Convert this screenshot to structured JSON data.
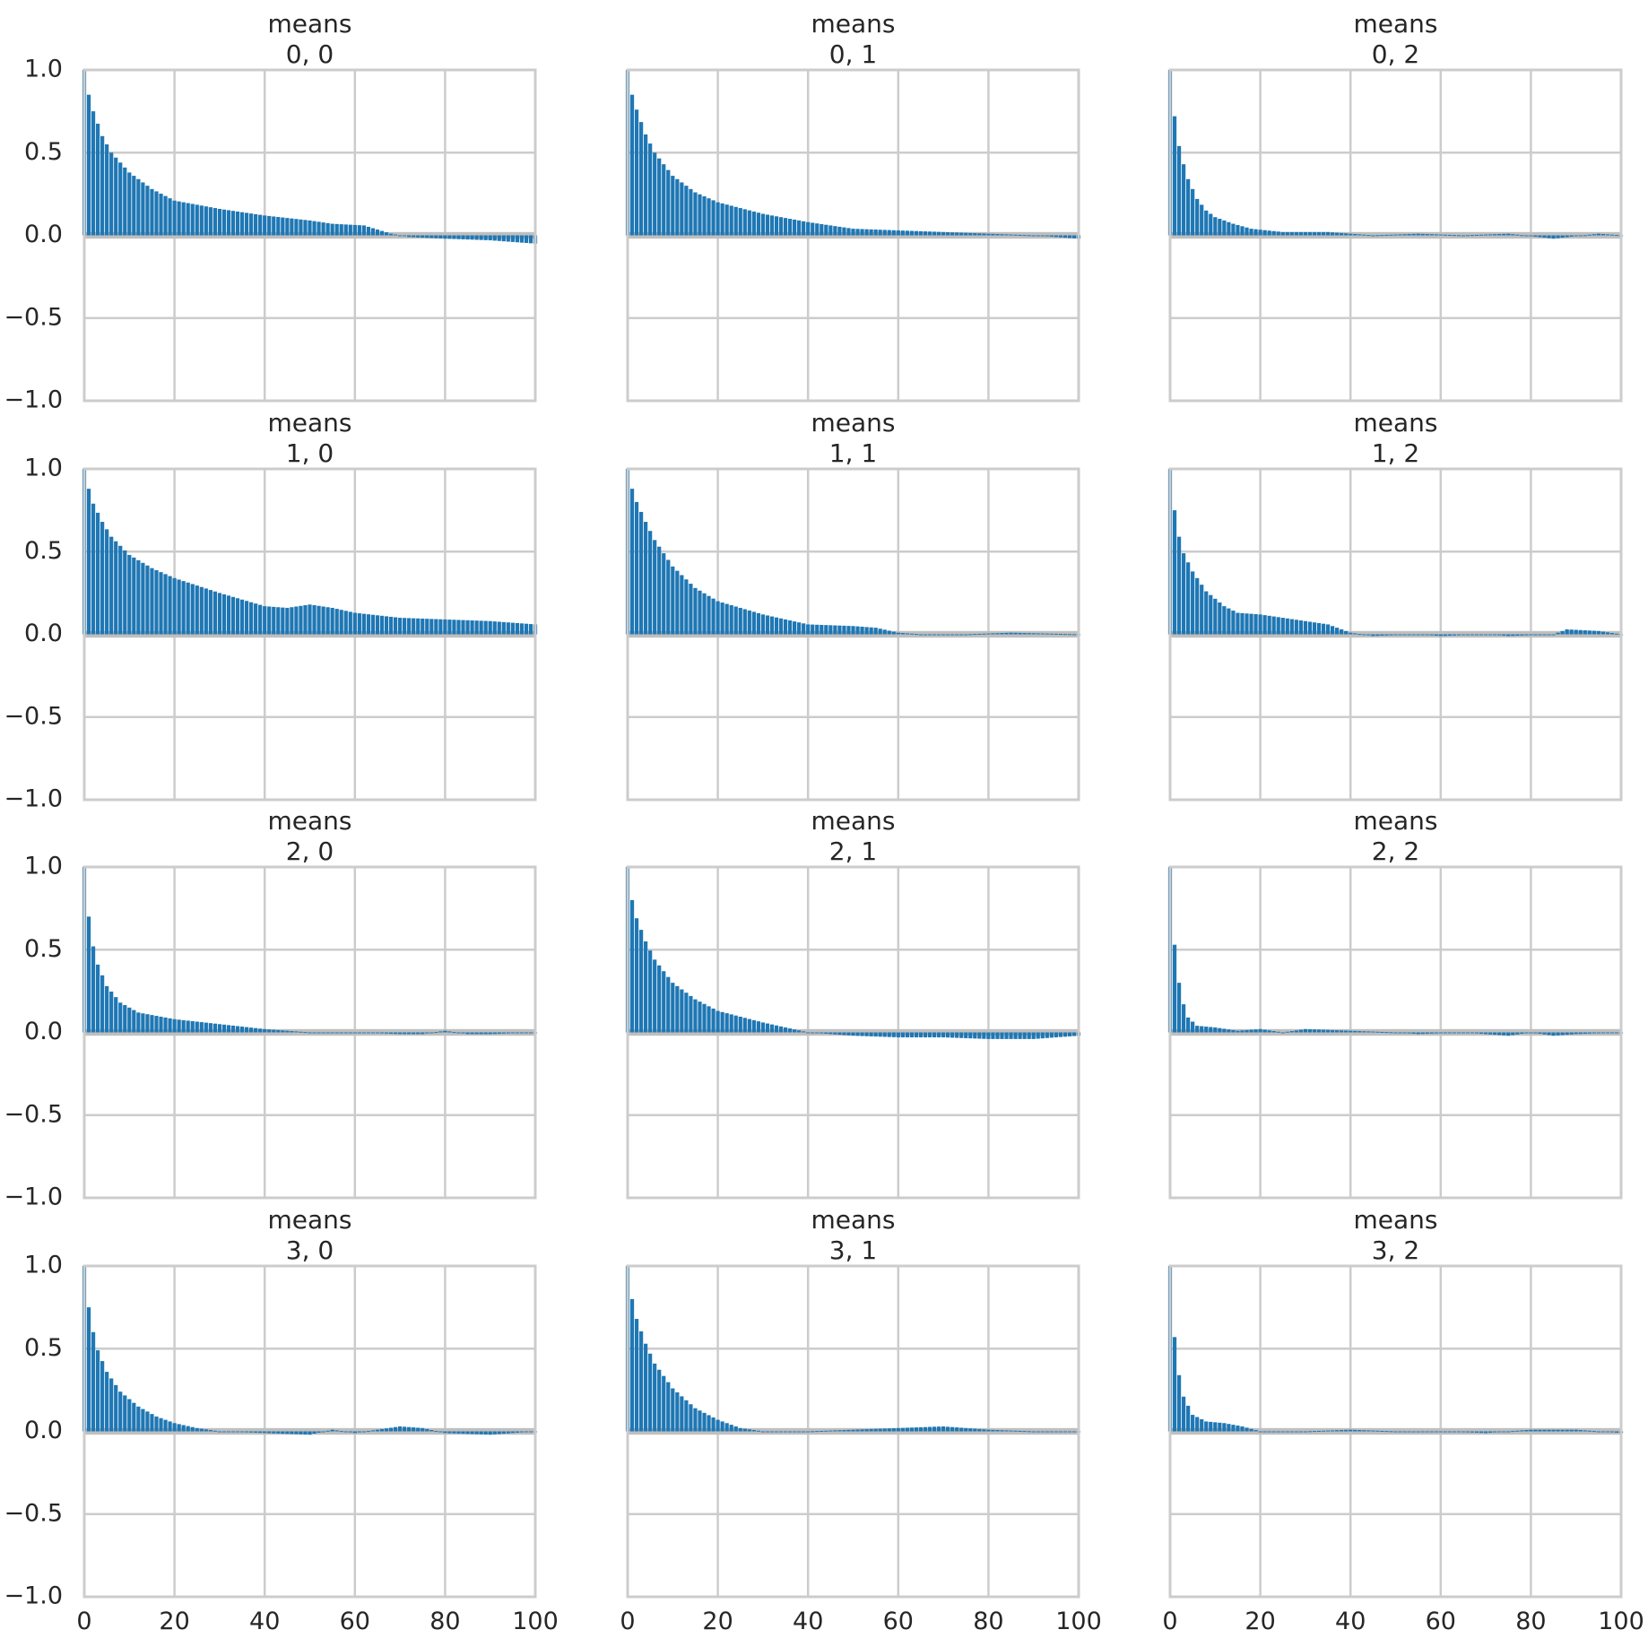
{
  "figure": {
    "bar_color": "#1f77b4",
    "band_color": "#bfbfbf",
    "grid_color": "#cccccc",
    "spine_color": "#cccccc",
    "text_color": "#262626"
  },
  "chart_data": [
    {
      "type": "bar",
      "title": "means",
      "subtitle": "0, 0",
      "xlim": [
        0,
        100
      ],
      "ylim": [
        -1,
        1
      ],
      "xticks": [
        "0",
        "20",
        "40",
        "60",
        "80",
        "100"
      ],
      "yticks": [
        "1.0",
        "0.5",
        "0.0",
        "−0.5",
        "−1.0"
      ],
      "anchors": [
        [
          0,
          1.0
        ],
        [
          1,
          0.85
        ],
        [
          2,
          0.75
        ],
        [
          4,
          0.6
        ],
        [
          6,
          0.5
        ],
        [
          10,
          0.38
        ],
        [
          15,
          0.28
        ],
        [
          20,
          0.21
        ],
        [
          30,
          0.16
        ],
        [
          40,
          0.12
        ],
        [
          50,
          0.09
        ],
        [
          55,
          0.07
        ],
        [
          62,
          0.06
        ],
        [
          68,
          0.01
        ],
        [
          72,
          -0.01
        ],
        [
          80,
          -0.02
        ],
        [
          90,
          -0.03
        ],
        [
          100,
          -0.05
        ]
      ]
    },
    {
      "type": "bar",
      "title": "means",
      "subtitle": "0, 1",
      "xlim": [
        0,
        100
      ],
      "ylim": [
        -1,
        1
      ],
      "xticks": [
        "0",
        "20",
        "40",
        "60",
        "80",
        "100"
      ],
      "yticks": [
        "1.0",
        "0.5",
        "0.0",
        "−0.5",
        "−1.0"
      ],
      "anchors": [
        [
          0,
          1.0
        ],
        [
          1,
          0.85
        ],
        [
          2,
          0.76
        ],
        [
          4,
          0.61
        ],
        [
          6,
          0.5
        ],
        [
          10,
          0.36
        ],
        [
          15,
          0.26
        ],
        [
          20,
          0.2
        ],
        [
          30,
          0.13
        ],
        [
          40,
          0.08
        ],
        [
          50,
          0.04
        ],
        [
          60,
          0.03
        ],
        [
          70,
          0.02
        ],
        [
          80,
          0.01
        ],
        [
          90,
          0.0
        ],
        [
          95,
          -0.01
        ],
        [
          100,
          -0.02
        ]
      ]
    },
    {
      "type": "bar",
      "title": "means",
      "subtitle": "0, 2",
      "xlim": [
        0,
        100
      ],
      "ylim": [
        -1,
        1
      ],
      "xticks": [
        "0",
        "20",
        "40",
        "60",
        "80",
        "100"
      ],
      "yticks": [
        "1.0",
        "0.5",
        "0.0",
        "−0.5",
        "−1.0"
      ],
      "anchors": [
        [
          0,
          1.0
        ],
        [
          1,
          0.72
        ],
        [
          2,
          0.54
        ],
        [
          3,
          0.43
        ],
        [
          4,
          0.34
        ],
        [
          6,
          0.22
        ],
        [
          8,
          0.15
        ],
        [
          10,
          0.11
        ],
        [
          14,
          0.07
        ],
        [
          18,
          0.04
        ],
        [
          25,
          0.02
        ],
        [
          35,
          0.02
        ],
        [
          45,
          0.0
        ],
        [
          55,
          0.01
        ],
        [
          65,
          0.0
        ],
        [
          75,
          0.01
        ],
        [
          85,
          -0.02
        ],
        [
          95,
          0.01
        ],
        [
          100,
          0.0
        ]
      ]
    },
    {
      "type": "bar",
      "title": "means",
      "subtitle": "1, 0",
      "xlim": [
        0,
        100
      ],
      "ylim": [
        -1,
        1
      ],
      "xticks": [
        "0",
        "20",
        "40",
        "60",
        "80",
        "100"
      ],
      "yticks": [
        "1.0",
        "0.5",
        "0.0",
        "−0.5",
        "−1.0"
      ],
      "anchors": [
        [
          0,
          1.0
        ],
        [
          1,
          0.88
        ],
        [
          2,
          0.79
        ],
        [
          4,
          0.68
        ],
        [
          6,
          0.59
        ],
        [
          10,
          0.48
        ],
        [
          15,
          0.4
        ],
        [
          20,
          0.34
        ],
        [
          30,
          0.25
        ],
        [
          40,
          0.17
        ],
        [
          45,
          0.16
        ],
        [
          50,
          0.18
        ],
        [
          55,
          0.16
        ],
        [
          60,
          0.13
        ],
        [
          70,
          0.1
        ],
        [
          80,
          0.09
        ],
        [
          90,
          0.08
        ],
        [
          100,
          0.06
        ]
      ]
    },
    {
      "type": "bar",
      "title": "means",
      "subtitle": "1, 1",
      "xlim": [
        0,
        100
      ],
      "ylim": [
        -1,
        1
      ],
      "xticks": [
        "0",
        "20",
        "40",
        "60",
        "80",
        "100"
      ],
      "yticks": [
        "1.0",
        "0.5",
        "0.0",
        "−0.5",
        "−1.0"
      ],
      "anchors": [
        [
          0,
          1.0
        ],
        [
          1,
          0.88
        ],
        [
          2,
          0.8
        ],
        [
          4,
          0.68
        ],
        [
          6,
          0.57
        ],
        [
          10,
          0.41
        ],
        [
          15,
          0.28
        ],
        [
          20,
          0.2
        ],
        [
          30,
          0.12
        ],
        [
          40,
          0.06
        ],
        [
          50,
          0.05
        ],
        [
          55,
          0.04
        ],
        [
          60,
          0.01
        ],
        [
          65,
          0.0
        ],
        [
          75,
          0.0
        ],
        [
          85,
          0.01
        ],
        [
          100,
          0.0
        ]
      ]
    },
    {
      "type": "bar",
      "title": "means",
      "subtitle": "1, 2",
      "xlim": [
        0,
        100
      ],
      "ylim": [
        -1,
        1
      ],
      "xticks": [
        "0",
        "20",
        "40",
        "60",
        "80",
        "100"
      ],
      "yticks": [
        "1.0",
        "0.5",
        "0.0",
        "−0.5",
        "−1.0"
      ],
      "anchors": [
        [
          0,
          1.0
        ],
        [
          1,
          0.75
        ],
        [
          2,
          0.59
        ],
        [
          3,
          0.49
        ],
        [
          5,
          0.38
        ],
        [
          8,
          0.26
        ],
        [
          12,
          0.17
        ],
        [
          15,
          0.13
        ],
        [
          20,
          0.12
        ],
        [
          25,
          0.1
        ],
        [
          30,
          0.08
        ],
        [
          35,
          0.06
        ],
        [
          40,
          0.01
        ],
        [
          45,
          -0.01
        ],
        [
          55,
          0.0
        ],
        [
          60,
          -0.01
        ],
        [
          70,
          0.0
        ],
        [
          75,
          -0.01
        ],
        [
          85,
          0.0
        ],
        [
          88,
          0.03
        ],
        [
          95,
          0.02
        ],
        [
          100,
          0.0
        ]
      ]
    },
    {
      "type": "bar",
      "title": "means",
      "subtitle": "2, 0",
      "xlim": [
        0,
        100
      ],
      "ylim": [
        -1,
        1
      ],
      "xticks": [
        "0",
        "20",
        "40",
        "60",
        "80",
        "100"
      ],
      "yticks": [
        "1.0",
        "0.5",
        "0.0",
        "−0.5",
        "−1.0"
      ],
      "anchors": [
        [
          0,
          1.0
        ],
        [
          1,
          0.7
        ],
        [
          2,
          0.52
        ],
        [
          3,
          0.41
        ],
        [
          5,
          0.28
        ],
        [
          8,
          0.18
        ],
        [
          12,
          0.12
        ],
        [
          20,
          0.08
        ],
        [
          30,
          0.05
        ],
        [
          40,
          0.02
        ],
        [
          50,
          0.0
        ],
        [
          60,
          0.0
        ],
        [
          70,
          -0.01
        ],
        [
          75,
          -0.01
        ],
        [
          80,
          0.01
        ],
        [
          85,
          -0.01
        ],
        [
          90,
          -0.01
        ],
        [
          100,
          0.0
        ]
      ]
    },
    {
      "type": "bar",
      "title": "means",
      "subtitle": "2, 1",
      "xlim": [
        0,
        100
      ],
      "ylim": [
        -1,
        1
      ],
      "xticks": [
        "0",
        "20",
        "40",
        "60",
        "80",
        "100"
      ],
      "yticks": [
        "1.0",
        "0.5",
        "0.0",
        "−0.5",
        "−1.0"
      ],
      "anchors": [
        [
          0,
          1.0
        ],
        [
          1,
          0.8
        ],
        [
          2,
          0.69
        ],
        [
          4,
          0.55
        ],
        [
          6,
          0.44
        ],
        [
          10,
          0.3
        ],
        [
          15,
          0.2
        ],
        [
          20,
          0.13
        ],
        [
          30,
          0.06
        ],
        [
          40,
          0.0
        ],
        [
          50,
          -0.02
        ],
        [
          60,
          -0.03
        ],
        [
          70,
          -0.03
        ],
        [
          80,
          -0.04
        ],
        [
          90,
          -0.04
        ],
        [
          100,
          -0.02
        ]
      ]
    },
    {
      "type": "bar",
      "title": "means",
      "subtitle": "2, 2",
      "xlim": [
        0,
        100
      ],
      "ylim": [
        -1,
        1
      ],
      "xticks": [
        "0",
        "20",
        "40",
        "60",
        "80",
        "100"
      ],
      "yticks": [
        "1.0",
        "0.5",
        "0.0",
        "−0.5",
        "−1.0"
      ],
      "anchors": [
        [
          0,
          1.0
        ],
        [
          1,
          0.53
        ],
        [
          2,
          0.3
        ],
        [
          3,
          0.17
        ],
        [
          4,
          0.09
        ],
        [
          6,
          0.04
        ],
        [
          10,
          0.03
        ],
        [
          15,
          0.01
        ],
        [
          20,
          0.02
        ],
        [
          25,
          0.0
        ],
        [
          30,
          0.02
        ],
        [
          40,
          0.01
        ],
        [
          50,
          0.0
        ],
        [
          55,
          -0.01
        ],
        [
          65,
          0.0
        ],
        [
          70,
          -0.01
        ],
        [
          75,
          -0.02
        ],
        [
          80,
          0.0
        ],
        [
          85,
          -0.02
        ],
        [
          90,
          -0.01
        ],
        [
          100,
          0.0
        ]
      ]
    },
    {
      "type": "bar",
      "title": "means",
      "subtitle": "3, 0",
      "xlim": [
        0,
        100
      ],
      "ylim": [
        -1,
        1
      ],
      "xticks": [
        "0",
        "20",
        "40",
        "60",
        "80",
        "100"
      ],
      "yticks": [
        "1.0",
        "0.5",
        "0.0",
        "−0.5",
        "−1.0"
      ],
      "anchors": [
        [
          0,
          1.0
        ],
        [
          1,
          0.75
        ],
        [
          2,
          0.6
        ],
        [
          3,
          0.49
        ],
        [
          5,
          0.36
        ],
        [
          8,
          0.24
        ],
        [
          12,
          0.15
        ],
        [
          16,
          0.09
        ],
        [
          20,
          0.05
        ],
        [
          25,
          0.02
        ],
        [
          30,
          0.0
        ],
        [
          40,
          -0.01
        ],
        [
          50,
          -0.02
        ],
        [
          55,
          0.01
        ],
        [
          60,
          -0.01
        ],
        [
          70,
          0.03
        ],
        [
          75,
          0.02
        ],
        [
          80,
          -0.01
        ],
        [
          90,
          -0.02
        ],
        [
          100,
          0.0
        ]
      ]
    },
    {
      "type": "bar",
      "title": "means",
      "subtitle": "3, 1",
      "xlim": [
        0,
        100
      ],
      "ylim": [
        -1,
        1
      ],
      "xticks": [
        "0",
        "20",
        "40",
        "60",
        "80",
        "100"
      ],
      "yticks": [
        "1.0",
        "0.5",
        "0.0",
        "−0.5",
        "−1.0"
      ],
      "anchors": [
        [
          0,
          1.0
        ],
        [
          1,
          0.8
        ],
        [
          2,
          0.68
        ],
        [
          4,
          0.53
        ],
        [
          6,
          0.41
        ],
        [
          10,
          0.26
        ],
        [
          15,
          0.14
        ],
        [
          20,
          0.07
        ],
        [
          25,
          0.02
        ],
        [
          30,
          0.0
        ],
        [
          40,
          0.0
        ],
        [
          50,
          0.01
        ],
        [
          60,
          0.02
        ],
        [
          70,
          0.03
        ],
        [
          80,
          0.01
        ],
        [
          90,
          0.0
        ],
        [
          100,
          0.0
        ]
      ]
    },
    {
      "type": "bar",
      "title": "means",
      "subtitle": "3, 2",
      "xlim": [
        0,
        100
      ],
      "ylim": [
        -1,
        1
      ],
      "xticks": [
        "0",
        "20",
        "40",
        "60",
        "80",
        "100"
      ],
      "yticks": [
        "1.0",
        "0.5",
        "0.0",
        "−0.5",
        "−1.0"
      ],
      "anchors": [
        [
          0,
          1.0
        ],
        [
          1,
          0.57
        ],
        [
          2,
          0.34
        ],
        [
          3,
          0.21
        ],
        [
          5,
          0.1
        ],
        [
          8,
          0.06
        ],
        [
          12,
          0.05
        ],
        [
          16,
          0.03
        ],
        [
          20,
          0.0
        ],
        [
          30,
          0.0
        ],
        [
          40,
          0.01
        ],
        [
          50,
          0.0
        ],
        [
          60,
          0.0
        ],
        [
          70,
          -0.01
        ],
        [
          80,
          0.01
        ],
        [
          90,
          0.01
        ],
        [
          100,
          -0.01
        ]
      ]
    }
  ]
}
